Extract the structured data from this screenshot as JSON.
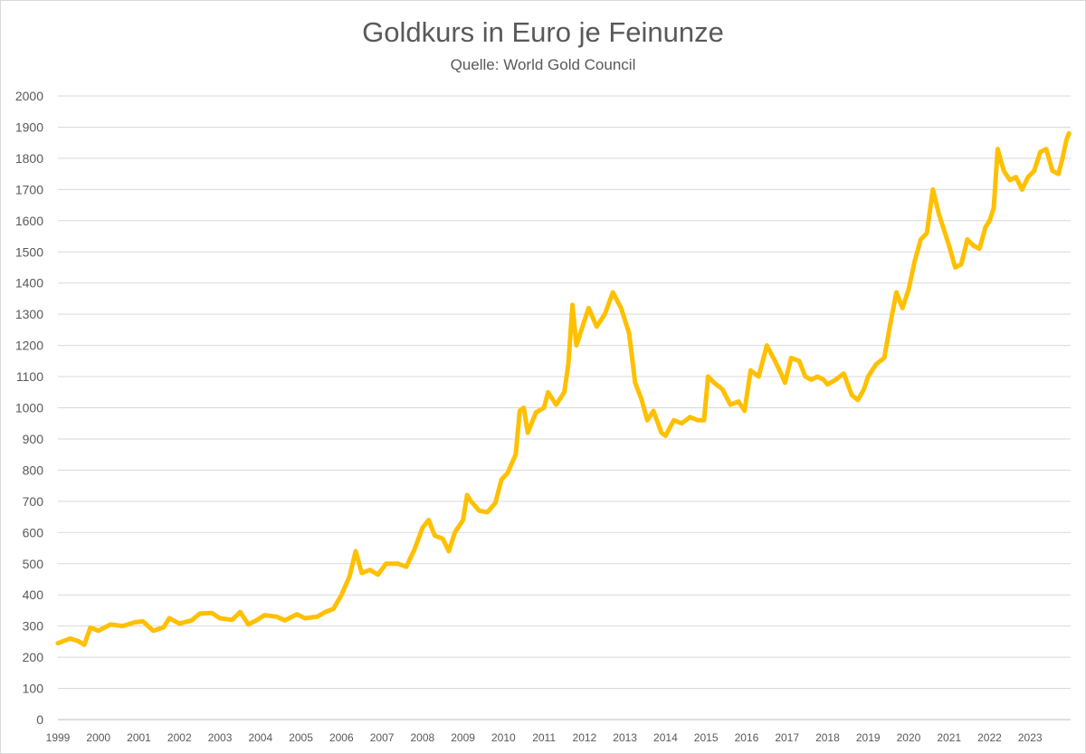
{
  "chart_data": {
    "type": "line",
    "title": "Goldkurs in Euro je Feinunze",
    "subtitle": "Quelle: World Gold Council",
    "xlabel": "",
    "ylabel": "",
    "ylim": [
      0,
      2000
    ],
    "yticks": [
      "0",
      "100",
      "200",
      "300",
      "400",
      "500",
      "600",
      "700",
      "800",
      "900",
      "1000",
      "1100",
      "1200",
      "1300",
      "1400",
      "1500",
      "1600",
      "1700",
      "1800",
      "1900",
      "2000"
    ],
    "xticks": [
      "1999",
      "2000",
      "2001",
      "2002",
      "2003",
      "2004",
      "2005",
      "2006",
      "2007",
      "2008",
      "2009",
      "2010",
      "2011",
      "2012",
      "2013",
      "2014",
      "2015",
      "2016",
      "2017",
      "2018",
      "2019",
      "2020",
      "2021",
      "2022",
      "2023"
    ],
    "grid": true,
    "legend": "none",
    "series": [
      {
        "color": "#FFC000",
        "points": [
          [
            1999.0,
            245
          ],
          [
            1999.3,
            260
          ],
          [
            1999.5,
            252
          ],
          [
            1999.65,
            240
          ],
          [
            1999.8,
            295
          ],
          [
            2000.0,
            285
          ],
          [
            2000.3,
            305
          ],
          [
            2000.6,
            300
          ],
          [
            2000.9,
            312
          ],
          [
            2001.1,
            315
          ],
          [
            2001.35,
            285
          ],
          [
            2001.6,
            295
          ],
          [
            2001.75,
            325
          ],
          [
            2002.0,
            308
          ],
          [
            2002.3,
            318
          ],
          [
            2002.5,
            340
          ],
          [
            2002.8,
            342
          ],
          [
            2003.0,
            325
          ],
          [
            2003.3,
            320
          ],
          [
            2003.5,
            345
          ],
          [
            2003.7,
            305
          ],
          [
            2003.9,
            318
          ],
          [
            2004.1,
            335
          ],
          [
            2004.4,
            330
          ],
          [
            2004.6,
            318
          ],
          [
            2004.9,
            338
          ],
          [
            2005.1,
            325
          ],
          [
            2005.4,
            330
          ],
          [
            2005.6,
            345
          ],
          [
            2005.8,
            355
          ],
          [
            2006.0,
            400
          ],
          [
            2006.2,
            460
          ],
          [
            2006.35,
            540
          ],
          [
            2006.5,
            470
          ],
          [
            2006.7,
            480
          ],
          [
            2006.9,
            465
          ],
          [
            2007.1,
            500
          ],
          [
            2007.4,
            500
          ],
          [
            2007.6,
            490
          ],
          [
            2007.8,
            545
          ],
          [
            2008.0,
            615
          ],
          [
            2008.15,
            640
          ],
          [
            2008.3,
            590
          ],
          [
            2008.5,
            580
          ],
          [
            2008.65,
            540
          ],
          [
            2008.8,
            600
          ],
          [
            2009.0,
            640
          ],
          [
            2009.1,
            720
          ],
          [
            2009.2,
            700
          ],
          [
            2009.4,
            670
          ],
          [
            2009.6,
            665
          ],
          [
            2009.8,
            695
          ],
          [
            2009.95,
            770
          ],
          [
            2010.1,
            790
          ],
          [
            2010.3,
            850
          ],
          [
            2010.4,
            990
          ],
          [
            2010.5,
            1000
          ],
          [
            2010.6,
            920
          ],
          [
            2010.8,
            985
          ],
          [
            2011.0,
            1000
          ],
          [
            2011.1,
            1050
          ],
          [
            2011.3,
            1010
          ],
          [
            2011.5,
            1050
          ],
          [
            2011.6,
            1140
          ],
          [
            2011.7,
            1330
          ],
          [
            2011.8,
            1200
          ],
          [
            2012.0,
            1280
          ],
          [
            2012.1,
            1320
          ],
          [
            2012.3,
            1260
          ],
          [
            2012.5,
            1300
          ],
          [
            2012.7,
            1370
          ],
          [
            2012.9,
            1320
          ],
          [
            2013.1,
            1240
          ],
          [
            2013.25,
            1080
          ],
          [
            2013.4,
            1030
          ],
          [
            2013.55,
            960
          ],
          [
            2013.7,
            990
          ],
          [
            2013.9,
            920
          ],
          [
            2014.0,
            910
          ],
          [
            2014.2,
            960
          ],
          [
            2014.4,
            950
          ],
          [
            2014.6,
            970
          ],
          [
            2014.8,
            960
          ],
          [
            2014.95,
            960
          ],
          [
            2015.05,
            1100
          ],
          [
            2015.2,
            1080
          ],
          [
            2015.4,
            1060
          ],
          [
            2015.6,
            1010
          ],
          [
            2015.8,
            1020
          ],
          [
            2015.95,
            990
          ],
          [
            2016.1,
            1120
          ],
          [
            2016.3,
            1100
          ],
          [
            2016.5,
            1200
          ],
          [
            2016.7,
            1150
          ],
          [
            2016.85,
            1110
          ],
          [
            2016.95,
            1080
          ],
          [
            2017.1,
            1160
          ],
          [
            2017.3,
            1150
          ],
          [
            2017.45,
            1100
          ],
          [
            2017.6,
            1090
          ],
          [
            2017.75,
            1100
          ],
          [
            2017.9,
            1090
          ],
          [
            2018.0,
            1075
          ],
          [
            2018.2,
            1090
          ],
          [
            2018.4,
            1110
          ],
          [
            2018.6,
            1040
          ],
          [
            2018.75,
            1025
          ],
          [
            2018.9,
            1060
          ],
          [
            2019.0,
            1100
          ],
          [
            2019.2,
            1140
          ],
          [
            2019.4,
            1160
          ],
          [
            2019.55,
            1270
          ],
          [
            2019.7,
            1370
          ],
          [
            2019.85,
            1320
          ],
          [
            2020.0,
            1380
          ],
          [
            2020.15,
            1470
          ],
          [
            2020.3,
            1540
          ],
          [
            2020.45,
            1560
          ],
          [
            2020.6,
            1700
          ],
          [
            2020.75,
            1620
          ],
          [
            2020.85,
            1580
          ],
          [
            2021.0,
            1520
          ],
          [
            2021.15,
            1450
          ],
          [
            2021.3,
            1460
          ],
          [
            2021.45,
            1540
          ],
          [
            2021.6,
            1520
          ],
          [
            2021.75,
            1510
          ],
          [
            2021.9,
            1580
          ],
          [
            2022.0,
            1600
          ],
          [
            2022.1,
            1640
          ],
          [
            2022.2,
            1830
          ],
          [
            2022.35,
            1760
          ],
          [
            2022.5,
            1730
          ],
          [
            2022.65,
            1740
          ],
          [
            2022.8,
            1700
          ],
          [
            2022.95,
            1740
          ],
          [
            2023.1,
            1760
          ],
          [
            2023.25,
            1820
          ],
          [
            2023.4,
            1830
          ],
          [
            2023.55,
            1760
          ],
          [
            2023.7,
            1750
          ],
          [
            2023.8,
            1800
          ],
          [
            2023.9,
            1860
          ],
          [
            2023.96,
            1880
          ]
        ]
      }
    ]
  }
}
